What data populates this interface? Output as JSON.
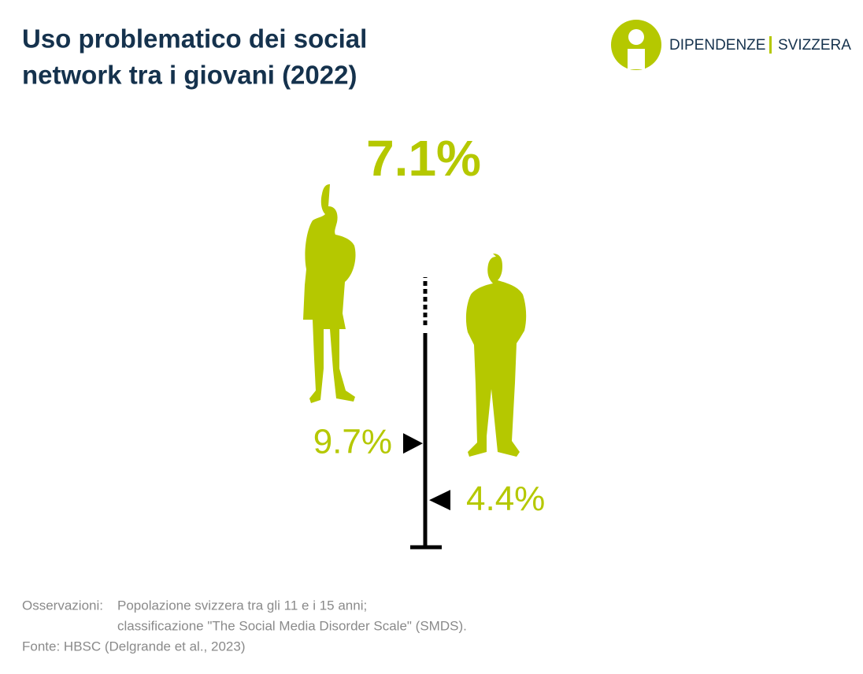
{
  "chart_data": {
    "type": "marker",
    "title_lines": [
      "Uso problematico dei social",
      "network tra i giovani (2022)"
    ],
    "headline": "7.1%",
    "values": [
      9.7,
      4.4
    ],
    "value_labels": [
      "9.7%",
      "4.4%"
    ],
    "color": "#b5c800",
    "axis_color": "#000000",
    "ylim": [
      0,
      20
    ]
  },
  "logo": {
    "left": "DIPENDENZE",
    "right": "SVIZZERA"
  },
  "notes": {
    "label": "Osservazioni:",
    "lines": [
      "Popolazione svizzera tra gli 11 e i 15 anni;",
      "classificazione \"The Social Media Disorder Scale\" (SMDS)."
    ],
    "source": "Fonte: HBSC (Delgrande et al., 2023)"
  }
}
